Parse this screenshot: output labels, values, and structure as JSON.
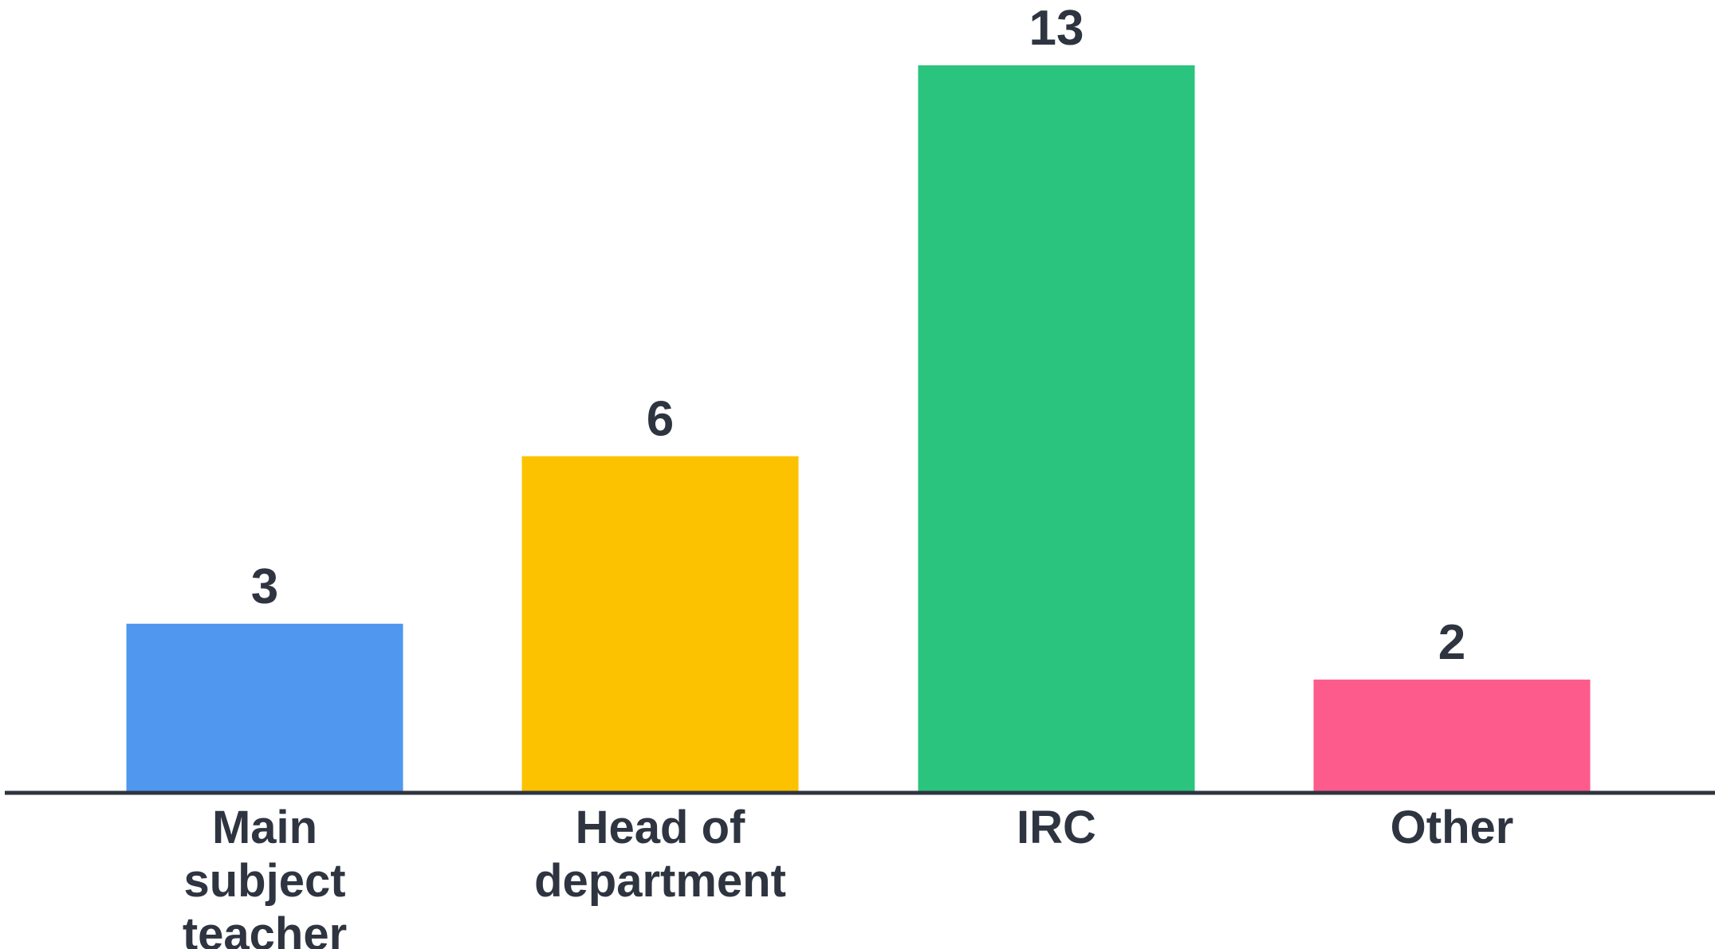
{
  "chart_data": {
    "type": "bar",
    "title": "",
    "xlabel": "",
    "ylabel": "",
    "categories": [
      "Main subject teacher",
      "Head of department",
      "IRC",
      "Other"
    ],
    "category_lines": [
      [
        "Main",
        "subject",
        "teacher"
      ],
      [
        "Head of",
        "department"
      ],
      [
        "IRC"
      ],
      [
        "Other"
      ]
    ],
    "values": [
      3,
      6,
      13,
      2
    ],
    "data_labels": [
      "3",
      "6",
      "13",
      "2"
    ],
    "colors": [
      "#4f97ef",
      "#fcc200",
      "#2bc47f",
      "#fe5b8d"
    ],
    "axis_color": "#2e3440",
    "ylim": [
      0,
      13
    ],
    "grid": false,
    "legend": "none"
  }
}
